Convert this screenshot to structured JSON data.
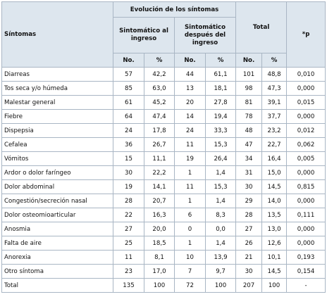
{
  "header": {
    "sintomas": "Síntomas",
    "evolucion": "Evolución de los síntomas",
    "sint_ingreso": "Sintomático al ingreso",
    "sint_despues": "Sintomático después del ingreso",
    "total": "Total",
    "p": "*p",
    "no": "No.",
    "pct": "%"
  },
  "rows": [
    {
      "name": "Diarreas",
      "c1": "57",
      "p1": "42,2",
      "c2": "44",
      "p2": "61,1",
      "c3": "101",
      "p3": "48,8",
      "pv": "0,010"
    },
    {
      "name": "Tos seca y/o húmeda",
      "c1": "85",
      "p1": "63,0",
      "c2": "13",
      "p2": "18,1",
      "c3": "98",
      "p3": "47,3",
      "pv": "0,000"
    },
    {
      "name": "Malestar general",
      "c1": "61",
      "p1": "45,2",
      "c2": "20",
      "p2": "27,8",
      "c3": "81",
      "p3": "39,1",
      "pv": "0,015"
    },
    {
      "name": "Fiebre",
      "c1": "64",
      "p1": "47,4",
      "c2": "14",
      "p2": "19,4",
      "c3": "78",
      "p3": "37,7",
      "pv": "0,000"
    },
    {
      "name": "Dispepsia",
      "c1": "24",
      "p1": "17,8",
      "c2": "24",
      "p2": "33,3",
      "c3": "48",
      "p3": "23,2",
      "pv": "0,012"
    },
    {
      "name": "Cefalea",
      "c1": "36",
      "p1": "26,7",
      "c2": "11",
      "p2": "15,3",
      "c3": "47",
      "p3": "22,7",
      "pv": "0,062"
    },
    {
      "name": "Vómitos",
      "c1": "15",
      "p1": "11,1",
      "c2": "19",
      "p2": "26,4",
      "c3": "34",
      "p3": "16,4",
      "pv": "0,005"
    },
    {
      "name": "Ardor o dolor faríngeo",
      "c1": "30",
      "p1": "22,2",
      "c2": "1",
      "p2": "1,4",
      "c3": "31",
      "p3": "15,0",
      "pv": "0,000"
    },
    {
      "name": "Dolor abdominal",
      "c1": "19",
      "p1": "14,1",
      "c2": "11",
      "p2": "15,3",
      "c3": "30",
      "p3": "14,5",
      "pv": "0,815"
    },
    {
      "name": "Congestión/secreción nasal",
      "c1": "28",
      "p1": "20,7",
      "c2": "1",
      "p2": "1,4",
      "c3": "29",
      "p3": "14,0",
      "pv": "0,000"
    },
    {
      "name": "Dolor osteomioarticular",
      "c1": "22",
      "p1": "16,3",
      "c2": "6",
      "p2": "8,3",
      "c3": "28",
      "p3": "13,5",
      "pv": "0,111"
    },
    {
      "name": "Anosmia",
      "c1": "27",
      "p1": "20,0",
      "c2": "0",
      "p2": "0,0",
      "c3": "27",
      "p3": "13,0",
      "pv": "0,000"
    },
    {
      "name": "Falta de aire",
      "c1": "25",
      "p1": "18,5",
      "c2": "1",
      "p2": "1,4",
      "c3": "26",
      "p3": "12,6",
      "pv": "0,000"
    },
    {
      "name": "Anorexia",
      "c1": "11",
      "p1": "8,1",
      "c2": "10",
      "p2": "13,9",
      "c3": "21",
      "p3": "10,1",
      "pv": "0,193"
    },
    {
      "name": "Otro síntoma",
      "c1": "23",
      "p1": "17,0",
      "c2": "7",
      "p2": "9,7",
      "c3": "30",
      "p3": "14,5",
      "pv": "0,154"
    },
    {
      "name": "Total",
      "c1": "135",
      "p1": "100",
      "c2": "72",
      "p2": "100",
      "c3": "207",
      "p3": "100",
      "pv": "-"
    }
  ]
}
